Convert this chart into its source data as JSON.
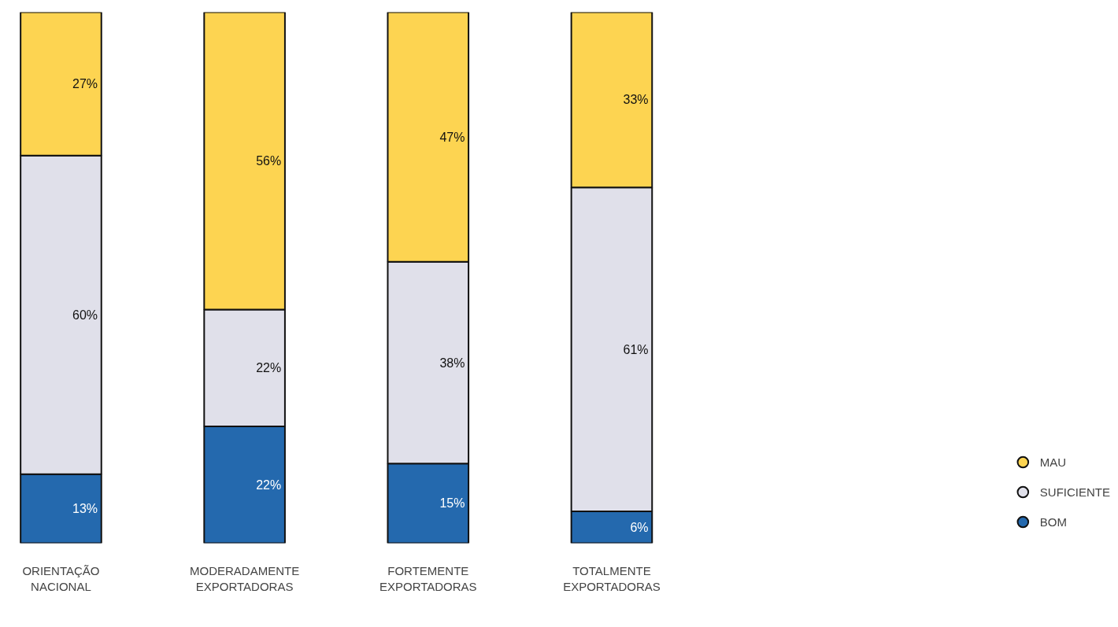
{
  "chart_data": {
    "type": "bar",
    "stacked": true,
    "categories": [
      "ORIENTAÇÃO\nNACIONAL",
      "MODERADAMENTE\nEXPORTADORAS",
      "FORTEMENTE\nEXPORTADORAS",
      "TOTALMENTE\nEXPORTADORAS"
    ],
    "series": [
      {
        "name": "BOM",
        "color": "#2469ae",
        "values": [
          13,
          22,
          15,
          6
        ],
        "value_labels": [
          "13%",
          "22%",
          "15%",
          "6%"
        ]
      },
      {
        "name": "SUFICIENTE",
        "color": "#e0e0ea",
        "values": [
          60,
          22,
          38,
          61
        ],
        "value_labels": [
          "60%",
          "22%",
          "38%",
          "61%"
        ]
      },
      {
        "name": "MAU",
        "color": "#fdd451",
        "values": [
          27,
          56,
          47,
          33
        ],
        "value_labels": [
          "27%",
          "56%",
          "47%",
          "33%"
        ]
      }
    ],
    "data_labels": true,
    "legend": "bottom right",
    "grid": false
  }
}
